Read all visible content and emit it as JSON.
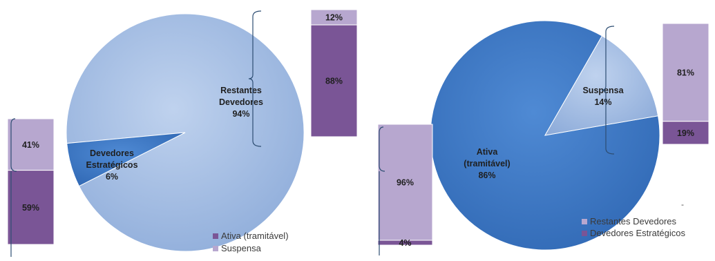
{
  "colors": {
    "pie_light": "#9db8e0",
    "pie_dark": "#3d79c4",
    "bar_light": "#b7a7cf",
    "bar_dark": "#7a5596",
    "legend_light": "#b7a7cf",
    "legend_dark": "#7a5596",
    "bracket": "#2d4d72"
  },
  "chart_data": [
    {
      "type": "pie",
      "labels": [
        "Restantes Devedores",
        "Devedores Estratégicos"
      ],
      "values": [
        94,
        6
      ],
      "data_labels": [
        {
          "lines": [
            "Restantes",
            "Devedores",
            "94%"
          ]
        },
        {
          "lines": [
            "Devedores",
            "Estratégicos",
            "6%"
          ]
        }
      ]
    },
    {
      "type": "bar",
      "stacked": true,
      "detail_of": "Restantes Devedores",
      "series": [
        {
          "name": "Ativa (tramitável)",
          "values": [
            88
          ]
        },
        {
          "name": "Suspensa",
          "values": [
            12
          ]
        }
      ],
      "data_labels": [
        "88%",
        "12%"
      ]
    },
    {
      "type": "bar",
      "stacked": true,
      "detail_of": "Devedores Estratégicos",
      "series": [
        {
          "name": "Ativa (tramitável)",
          "values": [
            59
          ]
        },
        {
          "name": "Suspensa",
          "values": [
            41
          ]
        }
      ],
      "data_labels": [
        "59%",
        "41%"
      ]
    },
    {
      "type": "pie",
      "labels": [
        "Ativa (tramitável)",
        "Suspensa"
      ],
      "values": [
        86,
        14
      ],
      "data_labels": [
        {
          "lines": [
            "Ativa",
            "(tramitável)",
            "86%"
          ]
        },
        {
          "lines": [
            "Suspensa",
            "14%"
          ]
        }
      ]
    },
    {
      "type": "bar",
      "stacked": true,
      "detail_of": "Suspensa",
      "series": [
        {
          "name": "Devedores Estratégicos",
          "values": [
            19
          ]
        },
        {
          "name": "Restantes Devedores",
          "values": [
            81
          ]
        }
      ],
      "data_labels": [
        "19%",
        "81%"
      ]
    },
    {
      "type": "bar",
      "stacked": true,
      "detail_of": "Ativa (tramitável)",
      "series": [
        {
          "name": "Devedores Estratégicos",
          "values": [
            4
          ]
        },
        {
          "name": "Restantes Devedores",
          "values": [
            96
          ]
        }
      ],
      "data_labels": [
        "4%",
        "96%"
      ]
    }
  ],
  "legend_left": {
    "items": [
      {
        "label": "Ativa (tramitável)",
        "color_key": "legend_dark"
      },
      {
        "label": "Suspensa",
        "color_key": "legend_light"
      }
    ]
  },
  "legend_right": {
    "items": [
      {
        "label": "Restantes Devedores",
        "color_key": "legend_light"
      },
      {
        "label": "Devedores Estratégicos",
        "color_key": "legend_dark"
      }
    ]
  },
  "stray_mark": "-"
}
